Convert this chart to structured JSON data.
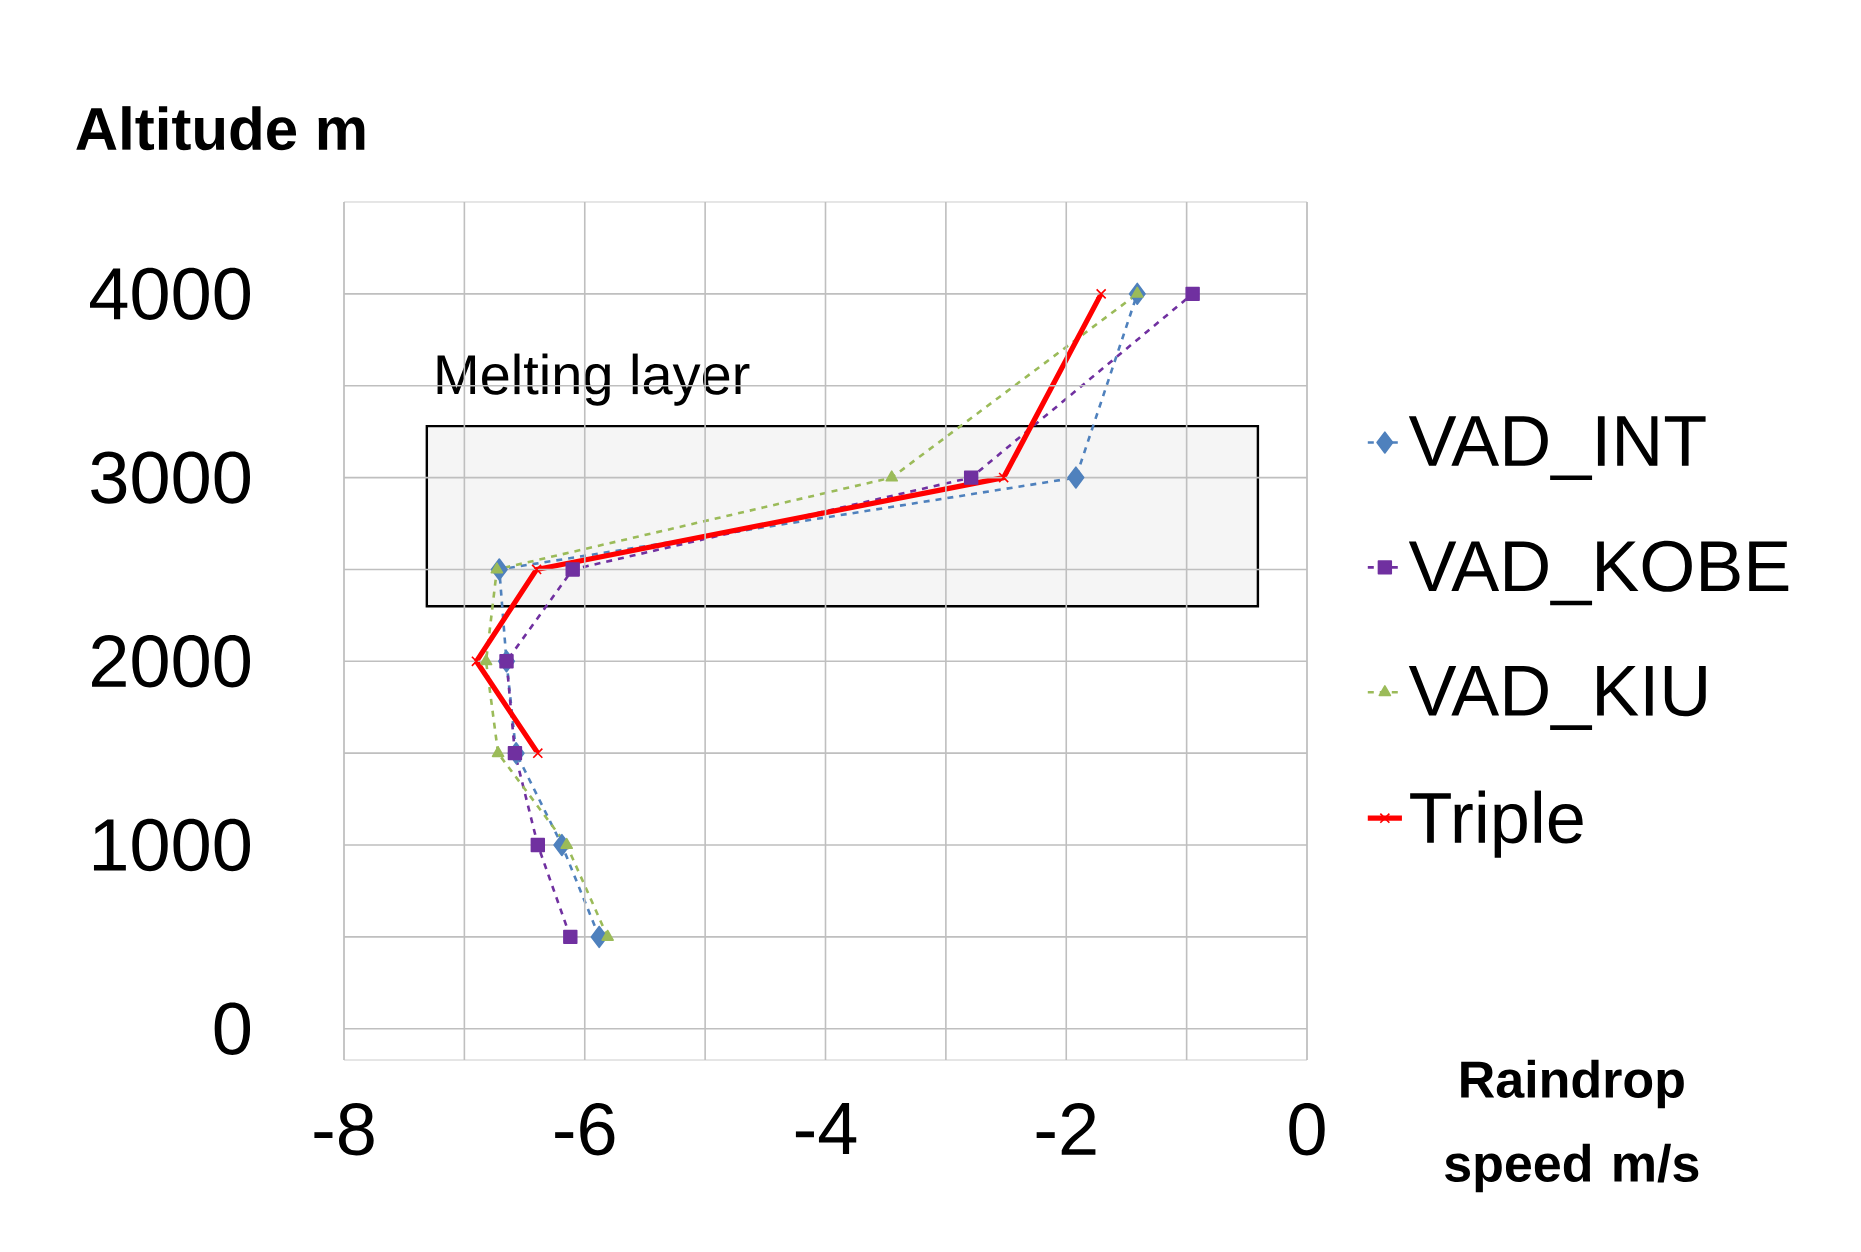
{
  "chart_data": {
    "type": "line",
    "xlabel": "Raindrop speed m/s",
    "ylabel": "Altitude m",
    "xlim": [
      -8,
      0
    ],
    "xticks": [
      -8,
      {
        "value": -7,
        "label": null
      },
      -6,
      {
        "value": -5,
        "label": null
      },
      -4,
      {
        "value": -3,
        "label": null
      },
      -2,
      {
        "value": -1,
        "label": null
      },
      0
    ],
    "ylim": [
      -170,
      4500
    ],
    "yticks": [
      0,
      {
        "value": 500,
        "label": null
      },
      1000,
      {
        "value": 1500,
        "label": null
      },
      2000,
      {
        "value": 2500,
        "label": null
      },
      3000,
      {
        "value": 3500,
        "label": null
      },
      4000
    ],
    "grid": true,
    "legend": "right",
    "series": [
      {
        "name": "VAD_INT",
        "color": "#4f81bd",
        "marker": "diamond",
        "line_style": "dashed",
        "x": [
          -5.88,
          -6.19,
          -6.57,
          -6.65,
          -6.71,
          -1.92,
          -1.41
        ],
        "values": [
          500,
          1000,
          1500,
          2000,
          2500,
          3000,
          4000
        ]
      },
      {
        "name": "VAD_KOBE",
        "color": "#7030a0",
        "marker": "square",
        "line_style": "dashed",
        "x": [
          -6.12,
          -6.39,
          -6.58,
          -6.65,
          -6.1,
          -2.79,
          -0.95
        ],
        "values": [
          500,
          1000,
          1500,
          2000,
          2500,
          3000,
          4000
        ]
      },
      {
        "name": "VAD_KIU",
        "color": "#9bbb59",
        "marker": "triangle",
        "line_style": "dashed",
        "x": [
          -5.81,
          -6.15,
          -6.72,
          -6.82,
          -6.73,
          -3.45,
          -1.41
        ],
        "values": [
          500,
          1000,
          1500,
          2000,
          2500,
          3000,
          4000
        ]
      },
      {
        "name": "Triple",
        "color": "#ff0000",
        "marker": "cross",
        "line_style": "solid",
        "x": [
          -6.39,
          -6.9,
          -6.4,
          -2.52,
          -1.71
        ],
        "values": [
          1500,
          2000,
          2500,
          3000,
          4000
        ]
      }
    ],
    "bands": [
      {
        "axis": "y",
        "from": 2300,
        "to": 3280,
        "label": "Melting layer",
        "color": "#000000"
      }
    ]
  }
}
